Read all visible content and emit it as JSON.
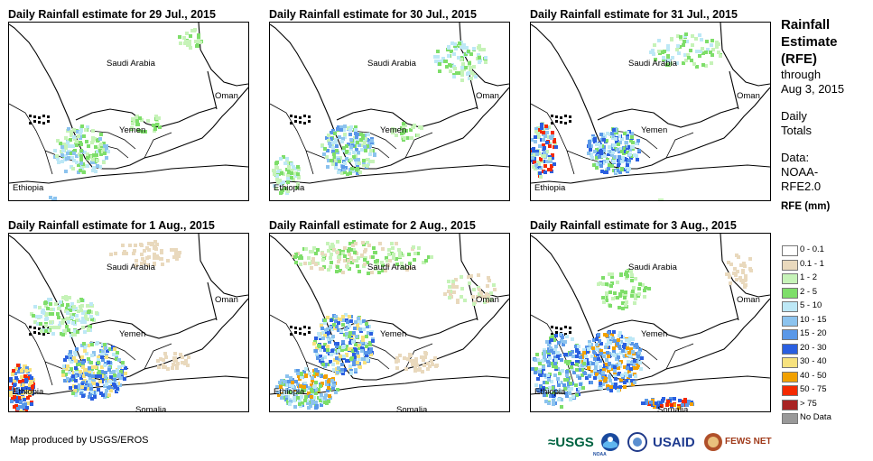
{
  "panels": [
    {
      "title": "Daily Rainfall estimate for 29 Jul., 2015"
    },
    {
      "title": "Daily Rainfall estimate for 30 Jul., 2015"
    },
    {
      "title": "Daily Rainfall estimate for 31 Jul., 2015"
    },
    {
      "title": "Daily Rainfall estimate for 1 Aug., 2015"
    },
    {
      "title": "Daily Rainfall estimate for 2 Aug., 2015"
    },
    {
      "title": "Daily Rainfall estimate for 3 Aug., 2015"
    }
  ],
  "map_labels": {
    "saudi": "Saudi Arabia",
    "oman": "Oman",
    "yemen": "Yemen",
    "ethiopia": "Ethiopia",
    "somalia": "Somalia"
  },
  "legend": {
    "title_lines": [
      "Rainfall",
      "Estimate",
      "(RFE)"
    ],
    "through_lines": [
      "through",
      "Aug 3, 2015"
    ],
    "daily_lines": [
      "Daily",
      "Totals"
    ],
    "data_lines": [
      "Data:",
      "NOAA-",
      "RFE2.0"
    ],
    "rfe_title": "RFE (mm)",
    "items": [
      {
        "label": "0 - 0.1",
        "color": "#ffffff"
      },
      {
        "label": "0.1 - 1",
        "color": "#e9d9bd"
      },
      {
        "label": "1 - 2",
        "color": "#c6f3b8"
      },
      {
        "label": "2 - 5",
        "color": "#7ede6a"
      },
      {
        "label": "5 - 10",
        "color": "#bde8f6"
      },
      {
        "label": "10 - 15",
        "color": "#8cc3ee"
      },
      {
        "label": "15 - 20",
        "color": "#5a98e8"
      },
      {
        "label": "20 - 30",
        "color": "#2a5fe0"
      },
      {
        "label": "30 - 40",
        "color": "#f7e27e"
      },
      {
        "label": "40 - 50",
        "color": "#f2a100"
      },
      {
        "label": "50 - 75",
        "color": "#f42a00"
      },
      {
        "label": "> 75",
        "color": "#a82424"
      },
      {
        "label": "No Data",
        "color": "#999999"
      }
    ]
  },
  "credit": "Map produced by USGS/EROS",
  "logos": {
    "usgs": "≈USGS",
    "noaa": "NOAA",
    "usaid": "USAID",
    "fewsnet": "FEWS NET"
  }
}
